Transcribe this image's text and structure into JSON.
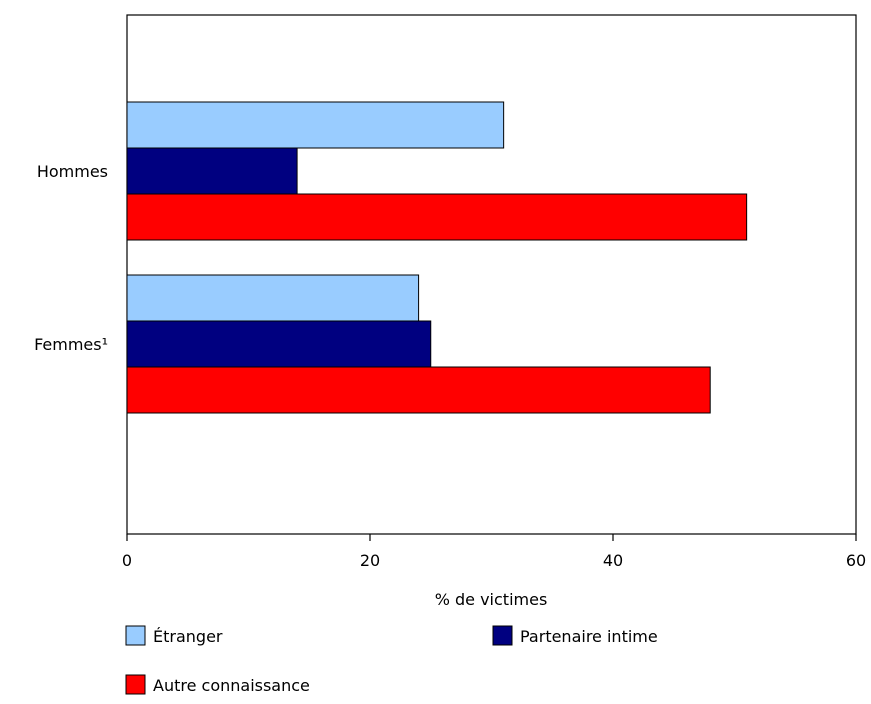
{
  "chart_data": {
    "type": "bar",
    "orientation": "horizontal",
    "categories": [
      "Hommes",
      "Femmes¹"
    ],
    "series": [
      {
        "name": "Étranger",
        "color": "#99ccff",
        "values": [
          31,
          24
        ]
      },
      {
        "name": "Partenaire intime",
        "color": "#000080",
        "values": [
          14,
          25
        ]
      },
      {
        "name": "Autre connaissance",
        "color": "#ff0000",
        "values": [
          51,
          48
        ]
      }
    ],
    "xlabel": "% de victimes",
    "xlim": [
      0,
      60
    ],
    "xticks": [
      0,
      20,
      40,
      60
    ],
    "grid": false,
    "legend_position": "bottom"
  }
}
